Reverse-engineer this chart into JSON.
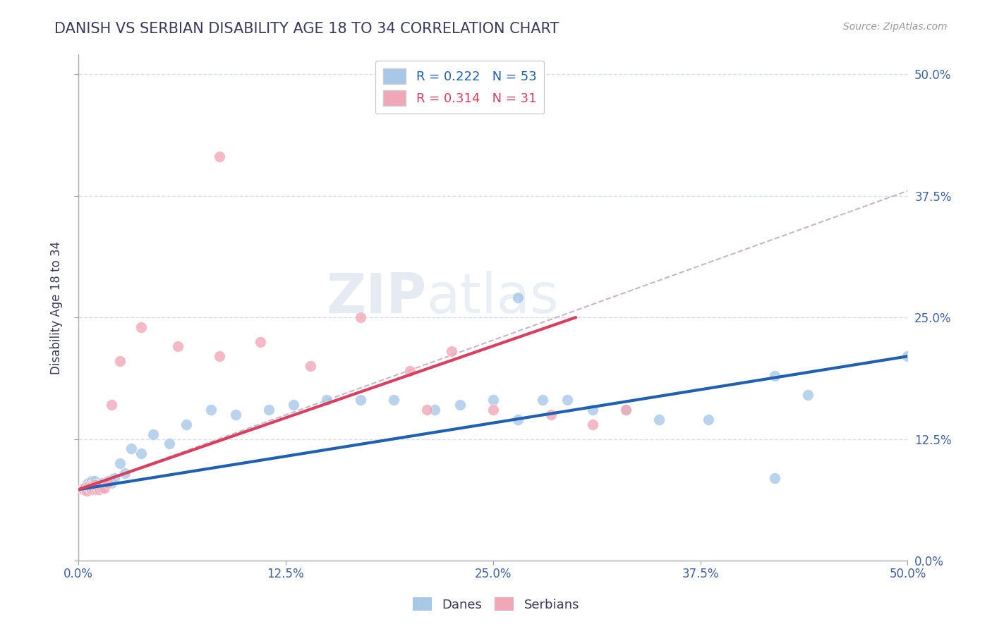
{
  "title": "DANISH VS SERBIAN DISABILITY AGE 18 TO 34 CORRELATION CHART",
  "source": "Source: ZipAtlas.com",
  "ylabel": "Disability Age 18 to 34",
  "xlim": [
    0.0,
    0.5
  ],
  "ylim": [
    0.0,
    0.52
  ],
  "xticks": [
    0.0,
    0.125,
    0.25,
    0.375,
    0.5
  ],
  "yticks": [
    0.0,
    0.125,
    0.25,
    0.375,
    0.5
  ],
  "xtick_labels": [
    "0.0%",
    "12.5%",
    "25.0%",
    "37.5%",
    "50.0%"
  ],
  "ytick_labels_right": [
    "0.0%",
    "12.5%",
    "25.0%",
    "37.5%",
    "50.0%"
  ],
  "dane_color": "#a8c8e8",
  "serbian_color": "#f0a8b8",
  "dane_line_color": "#2060b0",
  "serbian_line_color": "#d84060",
  "dash_line_color": "#c0b0c0",
  "grid_color": "#d8dce8",
  "R_dane": 0.222,
  "N_dane": 53,
  "R_serbian": 0.314,
  "N_serbian": 31,
  "title_color": "#3a3a5a",
  "source_color": "#999999",
  "axis_label_color": "#3a3a5a",
  "tick_color": "#4060a0",
  "watermark_line1": "ZIP",
  "watermark_line2": "atlas",
  "danes_x": [
    0.003,
    0.004,
    0.005,
    0.005,
    0.006,
    0.006,
    0.007,
    0.007,
    0.008,
    0.008,
    0.009,
    0.009,
    0.01,
    0.01,
    0.011,
    0.012,
    0.013,
    0.014,
    0.015,
    0.016,
    0.017,
    0.018,
    0.02,
    0.022,
    0.025,
    0.028,
    0.032,
    0.038,
    0.045,
    0.055,
    0.065,
    0.08,
    0.095,
    0.115,
    0.13,
    0.15,
    0.17,
    0.19,
    0.215,
    0.23,
    0.25,
    0.265,
    0.28,
    0.295,
    0.31,
    0.33,
    0.35,
    0.38,
    0.265,
    0.42,
    0.44,
    0.42,
    0.5
  ],
  "danes_y": [
    0.075,
    0.075,
    0.073,
    0.078,
    0.075,
    0.08,
    0.073,
    0.078,
    0.074,
    0.082,
    0.075,
    0.08,
    0.073,
    0.082,
    0.078,
    0.075,
    0.078,
    0.08,
    0.075,
    0.078,
    0.08,
    0.082,
    0.08,
    0.085,
    0.1,
    0.09,
    0.115,
    0.11,
    0.13,
    0.12,
    0.14,
    0.155,
    0.15,
    0.155,
    0.16,
    0.165,
    0.165,
    0.165,
    0.155,
    0.16,
    0.165,
    0.145,
    0.165,
    0.165,
    0.155,
    0.155,
    0.145,
    0.145,
    0.27,
    0.085,
    0.17,
    0.19,
    0.21
  ],
  "serbians_x": [
    0.003,
    0.004,
    0.005,
    0.006,
    0.007,
    0.008,
    0.009,
    0.01,
    0.011,
    0.012,
    0.013,
    0.014,
    0.015,
    0.016,
    0.018,
    0.02,
    0.025,
    0.038,
    0.06,
    0.085,
    0.11,
    0.14,
    0.17,
    0.2,
    0.225,
    0.25,
    0.285,
    0.31,
    0.33,
    0.21,
    0.085
  ],
  "serbians_y": [
    0.073,
    0.075,
    0.072,
    0.076,
    0.075,
    0.073,
    0.075,
    0.078,
    0.073,
    0.075,
    0.073,
    0.075,
    0.078,
    0.075,
    0.08,
    0.16,
    0.205,
    0.24,
    0.22,
    0.21,
    0.225,
    0.2,
    0.25,
    0.195,
    0.215,
    0.155,
    0.15,
    0.14,
    0.155,
    0.155,
    0.415
  ],
  "dane_trend_x": [
    0.0,
    0.5
  ],
  "dane_trend_y": [
    0.073,
    0.21
  ],
  "serbian_trend_x": [
    0.0,
    0.3
  ],
  "serbian_trend_y": [
    0.073,
    0.25
  ],
  "dash_trend_x": [
    0.0,
    0.5
  ],
  "dash_trend_y": [
    0.073,
    0.38
  ]
}
